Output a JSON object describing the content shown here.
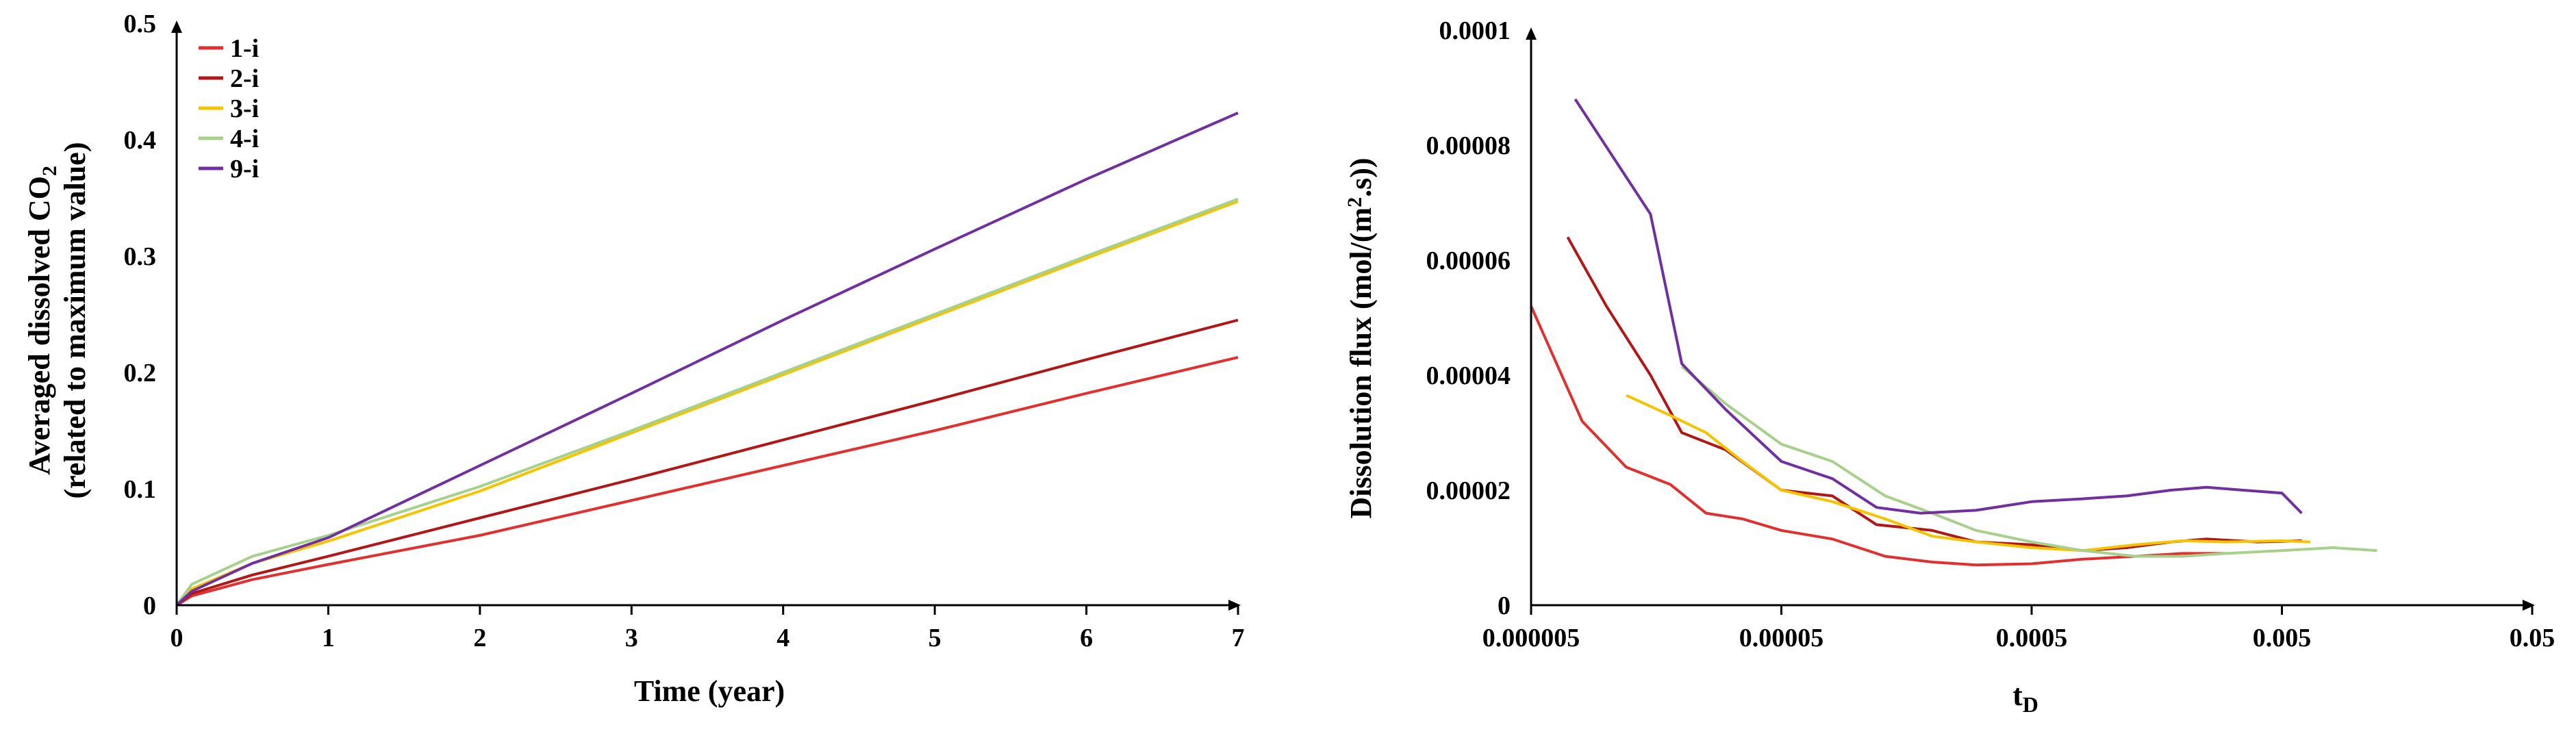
{
  "chart_data": [
    {
      "type": "line",
      "xlabel": "Time (year)",
      "ylabel_line1": "Averaged dissolved CO",
      "ylabel_sub": "2",
      "ylabel_line2": "(related to maximum value)",
      "xlim": [
        0,
        7
      ],
      "ylim": [
        0,
        0.5
      ],
      "x_ticks": [
        0,
        1,
        2,
        3,
        4,
        5,
        6,
        7
      ],
      "x_tick_labels": [
        "0",
        "1",
        "2",
        "3",
        "4",
        "5",
        "6",
        "7"
      ],
      "y_ticks": [
        0,
        0.1,
        0.2,
        0.3,
        0.4,
        0.5
      ],
      "y_tick_labels": [
        "0",
        "0.1",
        "0.2",
        "0.3",
        "0.4",
        "0.5"
      ],
      "legend_position": "top-left",
      "series": [
        {
          "name": "1-i",
          "color": "#e03030",
          "x": [
            0,
            0.1,
            0.5,
            1,
            2,
            3,
            4,
            5,
            6,
            7
          ],
          "y": [
            0,
            0.008,
            0.022,
            0.035,
            0.06,
            0.09,
            0.12,
            0.15,
            0.182,
            0.213
          ]
        },
        {
          "name": "2-i",
          "color": "#b01818",
          "x": [
            0,
            0.1,
            0.5,
            1,
            2,
            3,
            4,
            5,
            6,
            7
          ],
          "y": [
            0,
            0.01,
            0.026,
            0.042,
            0.075,
            0.108,
            0.142,
            0.176,
            0.211,
            0.245
          ]
        },
        {
          "name": "3-i",
          "color": "#f5c400",
          "x": [
            0,
            0.1,
            0.5,
            1,
            2,
            3,
            4,
            5,
            6,
            7
          ],
          "y": [
            0,
            0.014,
            0.036,
            0.055,
            0.098,
            0.148,
            0.198,
            0.248,
            0.298,
            0.347
          ]
        },
        {
          "name": "4-i",
          "color": "#a8d08d",
          "x": [
            0,
            0.1,
            0.5,
            1,
            2,
            3,
            4,
            5,
            6,
            7
          ],
          "y": [
            0,
            0.018,
            0.042,
            0.06,
            0.102,
            0.15,
            0.2,
            0.25,
            0.3,
            0.349
          ]
        },
        {
          "name": "9-i",
          "color": "#7030a0",
          "x": [
            0,
            0.1,
            0.5,
            1,
            2,
            3,
            4,
            5,
            6,
            7
          ],
          "y": [
            0,
            0.012,
            0.036,
            0.058,
            0.12,
            0.182,
            0.245,
            0.306,
            0.366,
            0.423
          ]
        }
      ]
    },
    {
      "type": "line",
      "x_scale": "log",
      "xlabel": "t",
      "xlabel_sub": "D",
      "ylabel": "Dissolution flux (mol/(m",
      "ylabel_sup": "2",
      "ylabel_end": ".s))",
      "xlim": [
        5e-06,
        0.05
      ],
      "ylim": [
        0,
        0.0001
      ],
      "x_ticks": [
        5e-06,
        5e-05,
        0.0005,
        0.005,
        0.05
      ],
      "x_tick_labels": [
        "0.000005",
        "0.00005",
        "0.0005",
        "0.005",
        "0.05"
      ],
      "y_ticks": [
        0,
        2e-05,
        4e-05,
        6e-05,
        8e-05,
        0.0001
      ],
      "y_tick_labels": [
        "0",
        "0.00002",
        "0.00004",
        "0.00006",
        "0.00008",
        "0.0001"
      ],
      "series": [
        {
          "name": "1-i",
          "color": "#e03030",
          "x": [
            5e-06,
            8e-06,
            1.2e-05,
            1.8e-05,
            2.5e-05,
            3.5e-05,
            5e-05,
            8e-05,
            0.00013,
            0.0002,
            0.0003,
            0.0005,
            0.0008,
            0.0013,
            0.002,
            0.003
          ],
          "y": [
            5.2e-05,
            3.2e-05,
            2.4e-05,
            2.1e-05,
            1.6e-05,
            1.5e-05,
            1.3e-05,
            1.15e-05,
            8.5e-06,
            7.5e-06,
            7e-06,
            7.2e-06,
            8e-06,
            8.5e-06,
            9e-06,
            9e-06
          ]
        },
        {
          "name": "2-i",
          "color": "#b01818",
          "x": [
            7e-06,
            1e-05,
            1.5e-05,
            2e-05,
            3e-05,
            5e-05,
            8e-05,
            0.00012,
            0.0002,
            0.0003,
            0.0005,
            0.0008,
            0.0012,
            0.0018,
            0.0025,
            0.004,
            0.006
          ],
          "y": [
            6.4e-05,
            5.2e-05,
            4e-05,
            3e-05,
            2.7e-05,
            2e-05,
            1.9e-05,
            1.4e-05,
            1.3e-05,
            1.1e-05,
            1.05e-05,
            9.5e-06,
            1e-05,
            1.1e-05,
            1.15e-05,
            1.1e-05,
            1.12e-05
          ]
        },
        {
          "name": "3-i",
          "color": "#f5c400",
          "x": [
            1.2e-05,
            1.8e-05,
            2.5e-05,
            3.5e-05,
            5e-05,
            8e-05,
            0.00013,
            0.0002,
            0.0003,
            0.0005,
            0.0008,
            0.0013,
            0.002,
            0.003,
            0.005,
            0.0065
          ],
          "y": [
            3.65e-05,
            3.3e-05,
            3e-05,
            2.5e-05,
            2e-05,
            1.8e-05,
            1.5e-05,
            1.2e-05,
            1.1e-05,
            1e-05,
            9.5e-06,
            1.05e-05,
            1.12e-05,
            1.1e-05,
            1.12e-05,
            1.1e-05
          ]
        },
        {
          "name": "4-i",
          "color": "#a8d08d",
          "x": [
            2e-05,
            3e-05,
            5e-05,
            8e-05,
            0.00013,
            0.0002,
            0.0003,
            0.0005,
            0.0008,
            0.0013,
            0.002,
            0.003,
            0.005,
            0.008,
            0.012
          ],
          "y": [
            4.15e-05,
            3.5e-05,
            2.8e-05,
            2.5e-05,
            1.9e-05,
            1.6e-05,
            1.3e-05,
            1.1e-05,
            9.5e-06,
            8.5e-06,
            8.5e-06,
            9e-06,
            9.5e-06,
            1e-05,
            9.5e-06
          ]
        },
        {
          "name": "9-i",
          "color": "#7030a0",
          "x": [
            7.5e-06,
            1.5e-05,
            2e-05,
            3e-05,
            5e-05,
            8e-05,
            0.00012,
            0.00018,
            0.0003,
            0.0005,
            0.0008,
            0.0012,
            0.0018,
            0.0025,
            0.0035,
            0.005,
            0.006
          ],
          "y": [
            8.8e-05,
            6.8e-05,
            4.2e-05,
            3.4e-05,
            2.5e-05,
            2.2e-05,
            1.7e-05,
            1.6e-05,
            1.65e-05,
            1.8e-05,
            1.85e-05,
            1.9e-05,
            2e-05,
            2.05e-05,
            2e-05,
            1.95e-05,
            1.6e-05
          ]
        }
      ]
    }
  ]
}
